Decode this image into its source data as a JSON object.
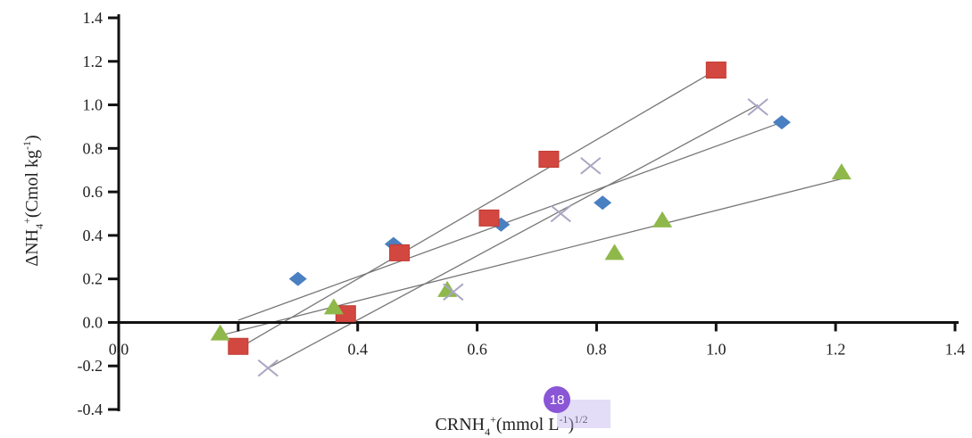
{
  "chart_data": {
    "type": "scatter",
    "title": "",
    "x_axis": {
      "label_parts": {
        "main": "CRNH",
        "sub": "4",
        "sup": "+",
        "rest": "(mmol L",
        "sup2": "-1",
        "close": ")",
        "sup3": "1/2"
      },
      "range": [
        0.0,
        1.4
      ],
      "ticks": [
        "0.0",
        "0.2",
        "0.4",
        "0.6",
        "0.8",
        "1.0",
        "1.2",
        "1.4"
      ]
    },
    "y_axis": {
      "label_parts": {
        "main": "ΔNH",
        "sub": "4",
        "sup": "+",
        "rest": "(Cmol kg",
        "sup2": "-1",
        "close": ")"
      },
      "range": [
        -0.4,
        1.4
      ],
      "ticks": [
        "-0.4",
        "-0.2",
        "0.0",
        "0.2",
        "0.4",
        "0.6",
        "0.8",
        "1.0",
        "1.2",
        "1.4"
      ]
    },
    "grid": false,
    "series": [
      {
        "marker": "diamond",
        "color": "#4a7fc1",
        "points": [
          [
            0.3,
            0.2
          ],
          [
            0.46,
            0.36
          ],
          [
            0.64,
            0.45
          ],
          [
            0.81,
            0.55
          ],
          [
            1.11,
            0.92
          ]
        ],
        "trendline": [
          [
            0.2,
            0.01
          ],
          [
            1.11,
            0.92
          ]
        ]
      },
      {
        "marker": "square",
        "color": "#d2473f",
        "points": [
          [
            0.2,
            -0.11
          ],
          [
            0.38,
            0.04
          ],
          [
            0.47,
            0.32
          ],
          [
            0.62,
            0.48
          ],
          [
            0.72,
            0.75
          ],
          [
            1.0,
            1.16
          ]
        ],
        "trendline": [
          [
            0.2,
            -0.12
          ],
          [
            1.0,
            1.16
          ]
        ]
      },
      {
        "marker": "triangle",
        "color": "#8fb84a",
        "points": [
          [
            0.17,
            -0.05
          ],
          [
            0.36,
            0.07
          ],
          [
            0.55,
            0.15
          ],
          [
            0.83,
            0.32
          ],
          [
            0.91,
            0.47
          ],
          [
            1.21,
            0.69
          ]
        ],
        "trendline": [
          [
            0.17,
            -0.06
          ],
          [
            1.21,
            0.66
          ]
        ]
      },
      {
        "marker": "x",
        "color": "#a8a6c2",
        "points": [
          [
            0.25,
            -0.21
          ],
          [
            0.56,
            0.14
          ],
          [
            0.74,
            0.5
          ],
          [
            0.79,
            0.72
          ],
          [
            1.07,
            0.99
          ]
        ],
        "trendline": [
          [
            0.25,
            -0.21
          ],
          [
            1.07,
            1.0
          ]
        ]
      }
    ]
  },
  "overlay": {
    "marker_badge": "18"
  }
}
